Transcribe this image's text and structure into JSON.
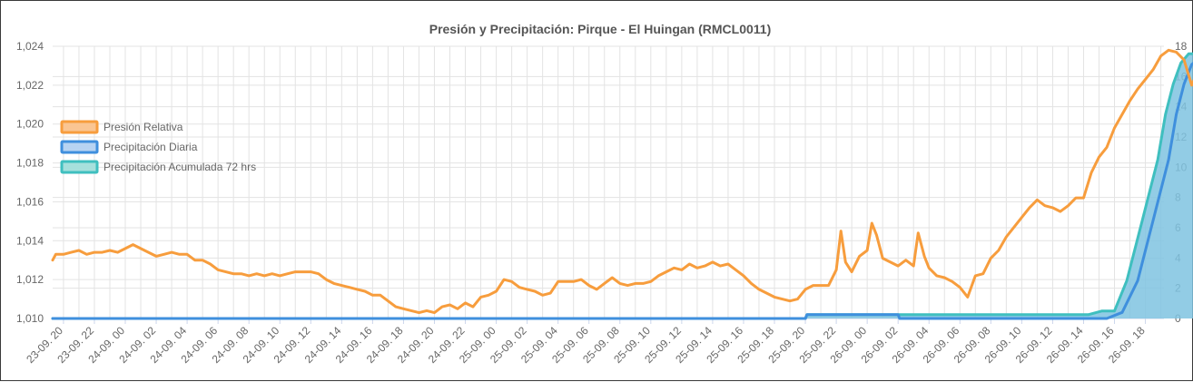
{
  "chart_data": {
    "type": "line",
    "title": "Presión y Precipitación: Pirque - El Huingan (RMCL0011)",
    "xlabel": "",
    "ylabel": "",
    "x_ticks": [
      "23-09. 20",
      "23-09. 22",
      "24-09. 00",
      "24-09. 02",
      "24-09. 04",
      "24-09. 06",
      "24-09. 08",
      "24-09. 10",
      "24-09. 12",
      "24-09. 14",
      "24-09. 16",
      "24-09. 18",
      "24-09. 20",
      "24-09. 22",
      "25-09. 00",
      "25-09. 02",
      "25-09. 04",
      "25-09. 06",
      "25-09. 08",
      "25-09. 10",
      "25-09. 12",
      "25-09. 14",
      "25-09. 16",
      "25-09. 18",
      "25-09. 20",
      "25-09. 22",
      "26-09. 00",
      "26-09. 02",
      "26-09. 04",
      "26-09. 06",
      "26-09. 08",
      "26-09. 10",
      "26-09. 12",
      "26-09. 14",
      "26-09. 16",
      "26-09. 18"
    ],
    "y_left": {
      "min": 1010,
      "max": 1024,
      "ticks": [
        "1,010",
        "1,012",
        "1,014",
        "1,016",
        "1,018",
        "1,020",
        "1,022",
        "1,024"
      ]
    },
    "y_right": {
      "min": 0,
      "max": 18,
      "ticks": [
        "0",
        "2",
        "4",
        "6",
        "8",
        "10",
        "12",
        "14",
        "16",
        "18"
      ]
    },
    "grid": true,
    "legend_position": "left",
    "x_range_hours": [
      -0.7,
      71.2
    ],
    "series": [
      {
        "name": "Presión Relativa",
        "axis": "left",
        "color": "#f79d3d",
        "style": "line",
        "points": [
          [
            -0.7,
            1013.0
          ],
          [
            -0.5,
            1013.3
          ],
          [
            0,
            1013.3
          ],
          [
            0.5,
            1013.4
          ],
          [
            1,
            1013.5
          ],
          [
            1.5,
            1013.3
          ],
          [
            2,
            1013.4
          ],
          [
            2.5,
            1013.4
          ],
          [
            3,
            1013.5
          ],
          [
            3.5,
            1013.4
          ],
          [
            4,
            1013.6
          ],
          [
            4.5,
            1013.8
          ],
          [
            5,
            1013.6
          ],
          [
            5.5,
            1013.4
          ],
          [
            6,
            1013.2
          ],
          [
            6.5,
            1013.3
          ],
          [
            7,
            1013.4
          ],
          [
            7.5,
            1013.3
          ],
          [
            8,
            1013.3
          ],
          [
            8.5,
            1013.0
          ],
          [
            9,
            1013.0
          ],
          [
            9.5,
            1012.8
          ],
          [
            10,
            1012.5
          ],
          [
            10.5,
            1012.4
          ],
          [
            11,
            1012.3
          ],
          [
            11.5,
            1012.3
          ],
          [
            12,
            1012.2
          ],
          [
            12.5,
            1012.3
          ],
          [
            13,
            1012.2
          ],
          [
            13.5,
            1012.3
          ],
          [
            14,
            1012.2
          ],
          [
            14.5,
            1012.3
          ],
          [
            15,
            1012.4
          ],
          [
            15.5,
            1012.4
          ],
          [
            16,
            1012.4
          ],
          [
            16.5,
            1012.3
          ],
          [
            17,
            1012.0
          ],
          [
            17.5,
            1011.8
          ],
          [
            18,
            1011.7
          ],
          [
            18.5,
            1011.6
          ],
          [
            19,
            1011.5
          ],
          [
            19.5,
            1011.4
          ],
          [
            20,
            1011.2
          ],
          [
            20.5,
            1011.2
          ],
          [
            21,
            1010.9
          ],
          [
            21.5,
            1010.6
          ],
          [
            22,
            1010.5
          ],
          [
            22.5,
            1010.4
          ],
          [
            23,
            1010.3
          ],
          [
            23.5,
            1010.4
          ],
          [
            24,
            1010.3
          ],
          [
            24.5,
            1010.6
          ],
          [
            25,
            1010.7
          ],
          [
            25.5,
            1010.5
          ],
          [
            26,
            1010.8
          ],
          [
            26.5,
            1010.6
          ],
          [
            27,
            1011.1
          ],
          [
            27.5,
            1011.2
          ],
          [
            28,
            1011.4
          ],
          [
            28.5,
            1012.0
          ],
          [
            29,
            1011.9
          ],
          [
            29.5,
            1011.6
          ],
          [
            30,
            1011.5
          ],
          [
            30.5,
            1011.4
          ],
          [
            31,
            1011.2
          ],
          [
            31.5,
            1011.3
          ],
          [
            32,
            1011.9
          ],
          [
            32.5,
            1011.9
          ],
          [
            33,
            1011.9
          ],
          [
            33.5,
            1012.0
          ],
          [
            34,
            1011.7
          ],
          [
            34.5,
            1011.5
          ],
          [
            35,
            1011.8
          ],
          [
            35.5,
            1012.1
          ],
          [
            36,
            1011.8
          ],
          [
            36.5,
            1011.7
          ],
          [
            37,
            1011.8
          ],
          [
            37.5,
            1011.8
          ],
          [
            38,
            1011.9
          ],
          [
            38.5,
            1012.2
          ],
          [
            39,
            1012.4
          ],
          [
            39.5,
            1012.6
          ],
          [
            40,
            1012.5
          ],
          [
            40.5,
            1012.8
          ],
          [
            41,
            1012.6
          ],
          [
            41.5,
            1012.7
          ],
          [
            42,
            1012.9
          ],
          [
            42.5,
            1012.7
          ],
          [
            43,
            1012.8
          ],
          [
            43.5,
            1012.5
          ],
          [
            44,
            1012.2
          ],
          [
            44.5,
            1011.8
          ],
          [
            45,
            1011.5
          ],
          [
            45.5,
            1011.3
          ],
          [
            46,
            1011.1
          ],
          [
            46.5,
            1011.0
          ],
          [
            47,
            1010.9
          ],
          [
            47.5,
            1011.0
          ],
          [
            48,
            1011.5
          ],
          [
            48.5,
            1011.7
          ],
          [
            49,
            1011.7
          ],
          [
            49.5,
            1011.7
          ],
          [
            50,
            1012.5
          ],
          [
            50.3,
            1014.5
          ],
          [
            50.6,
            1012.9
          ],
          [
            51,
            1012.4
          ],
          [
            51.5,
            1013.2
          ],
          [
            52,
            1013.5
          ],
          [
            52.3,
            1014.9
          ],
          [
            52.6,
            1014.3
          ],
          [
            53,
            1013.1
          ],
          [
            53.5,
            1012.9
          ],
          [
            54,
            1012.7
          ],
          [
            54.5,
            1013.0
          ],
          [
            55,
            1012.7
          ],
          [
            55.3,
            1014.4
          ],
          [
            55.7,
            1013.2
          ],
          [
            56,
            1012.6
          ],
          [
            56.5,
            1012.2
          ],
          [
            57,
            1012.1
          ],
          [
            57.5,
            1011.9
          ],
          [
            58,
            1011.6
          ],
          [
            58.5,
            1011.1
          ],
          [
            59,
            1012.2
          ],
          [
            59.5,
            1012.3
          ],
          [
            60,
            1013.1
          ],
          [
            60.5,
            1013.5
          ],
          [
            61,
            1014.2
          ],
          [
            61.5,
            1014.7
          ],
          [
            62,
            1015.2
          ],
          [
            62.5,
            1015.7
          ],
          [
            63,
            1016.1
          ],
          [
            63.5,
            1015.8
          ],
          [
            64,
            1015.7
          ],
          [
            64.5,
            1015.5
          ],
          [
            65,
            1015.8
          ],
          [
            65.5,
            1016.2
          ],
          [
            66,
            1016.2
          ],
          [
            66.5,
            1017.5
          ],
          [
            67,
            1018.3
          ],
          [
            67.5,
            1018.8
          ],
          [
            68,
            1019.8
          ],
          [
            68.5,
            1020.5
          ],
          [
            69,
            1021.2
          ],
          [
            69.5,
            1021.8
          ],
          [
            70,
            1022.3
          ],
          [
            70.5,
            1022.8
          ],
          [
            71,
            1023.5
          ],
          [
            71.5,
            1023.8
          ],
          [
            72,
            1023.7
          ],
          [
            72.5,
            1023.3
          ],
          [
            73,
            1022.0
          ],
          [
            73.5,
            1022.9
          ],
          [
            74,
            1022.3
          ],
          [
            74.3,
            1022.1
          ]
        ]
      },
      {
        "name": "Precipitación Diaria",
        "axis": "right",
        "color": "#3f8fdd",
        "style": "line",
        "points": [
          [
            -0.7,
            0
          ],
          [
            48,
            0
          ],
          [
            48.1,
            0.25
          ],
          [
            54,
            0.25
          ],
          [
            54.1,
            0
          ],
          [
            67.5,
            0
          ],
          [
            68.5,
            0.4
          ],
          [
            69.5,
            2.5
          ],
          [
            70.5,
            6.5
          ],
          [
            71.5,
            10.5
          ],
          [
            72,
            13.5
          ],
          [
            72.5,
            15.5
          ],
          [
            73,
            16.8
          ],
          [
            73.5,
            17.2
          ],
          [
            74.3,
            17.2
          ]
        ]
      },
      {
        "name": "Precipitación Acumulada 72 hrs",
        "axis": "right",
        "color": "#3fbfbf",
        "fill": "#7fc3e0",
        "style": "area",
        "points": [
          [
            -0.7,
            0
          ],
          [
            48,
            0
          ],
          [
            48.1,
            0.25
          ],
          [
            66.3,
            0.25
          ],
          [
            67.2,
            0.5
          ],
          [
            68,
            0.5
          ],
          [
            68.8,
            2.5
          ],
          [
            69.8,
            6.5
          ],
          [
            70.8,
            10.5
          ],
          [
            71.3,
            13.5
          ],
          [
            71.8,
            15.5
          ],
          [
            72.3,
            16.9
          ],
          [
            72.8,
            17.5
          ],
          [
            74.3,
            17.5
          ]
        ]
      }
    ]
  }
}
